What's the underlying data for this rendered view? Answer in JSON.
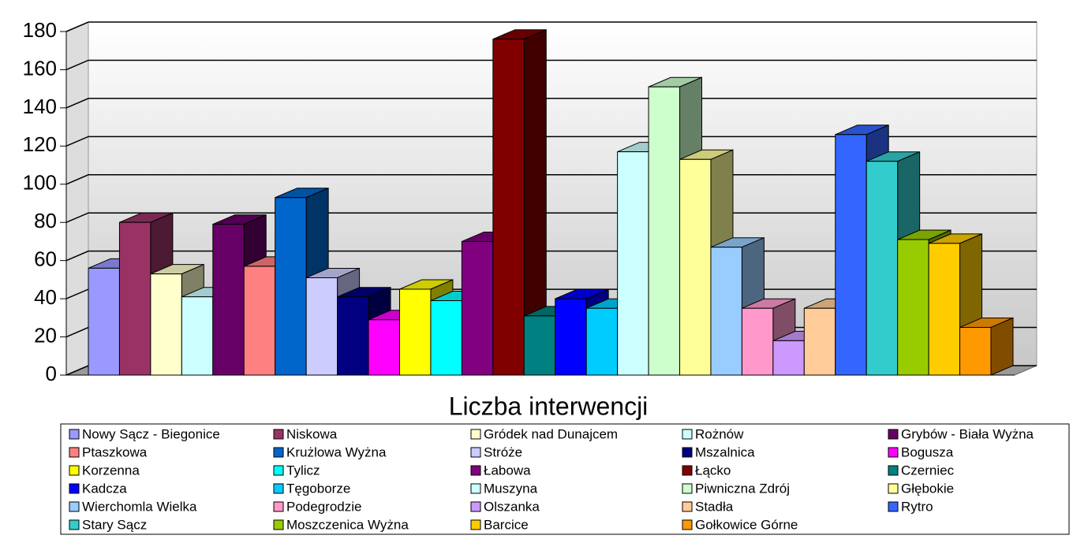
{
  "chart_data": {
    "type": "bar3d",
    "categories": [
      "Liczba interwencji"
    ],
    "ylim": [
      0,
      180
    ],
    "yticks": [
      0,
      20,
      40,
      60,
      80,
      100,
      120,
      140,
      160,
      180
    ],
    "grid": true,
    "series": [
      {
        "name": "Nowy Sącz - Biegonice",
        "color": "#9999ff",
        "values": [
          56
        ]
      },
      {
        "name": "Niskowa",
        "color": "#993366",
        "values": [
          80
        ]
      },
      {
        "name": "Gródek nad Dunajcem",
        "color": "#ffffcc",
        "values": [
          53
        ]
      },
      {
        "name": "Rożnów",
        "color": "#ccffff",
        "values": [
          41
        ]
      },
      {
        "name": "Grybów - Biała Wyżna",
        "color": "#660066",
        "values": [
          79
        ]
      },
      {
        "name": "Ptaszkowa",
        "color": "#ff8080",
        "values": [
          57
        ]
      },
      {
        "name": "Krużlowa Wyżna",
        "color": "#0066cc",
        "values": [
          93
        ]
      },
      {
        "name": "Stróże",
        "color": "#ccccff",
        "values": [
          51
        ]
      },
      {
        "name": "Mszalnica",
        "color": "#000080",
        "values": [
          41
        ]
      },
      {
        "name": "Bogusza",
        "color": "#ff00ff",
        "values": [
          29
        ]
      },
      {
        "name": "Korzenna",
        "color": "#ffff00",
        "values": [
          45
        ]
      },
      {
        "name": "Tylicz",
        "color": "#00ffff",
        "values": [
          39
        ]
      },
      {
        "name": "Łabowa",
        "color": "#800080",
        "values": [
          70
        ]
      },
      {
        "name": "Łącko",
        "color": "#800000",
        "values": [
          176
        ]
      },
      {
        "name": "Czerniec",
        "color": "#008080",
        "values": [
          31
        ]
      },
      {
        "name": "Kadcza",
        "color": "#0000ff",
        "values": [
          40
        ]
      },
      {
        "name": "Tęgoborze",
        "color": "#00ccff",
        "values": [
          35
        ]
      },
      {
        "name": "Muszyna",
        "color": "#ccffff",
        "values": [
          117
        ]
      },
      {
        "name": "Piwniczna Zdrój",
        "color": "#ccffcc",
        "values": [
          151
        ]
      },
      {
        "name": "Głębokie",
        "color": "#ffff99",
        "values": [
          113
        ]
      },
      {
        "name": "Wierchomla Wielka",
        "color": "#99ccff",
        "values": [
          67
        ]
      },
      {
        "name": "Podegrodzie",
        "color": "#ff99cc",
        "values": [
          35
        ]
      },
      {
        "name": "Olszanka",
        "color": "#cc99ff",
        "values": [
          18
        ]
      },
      {
        "name": "Stadła",
        "color": "#ffcc99",
        "values": [
          35
        ]
      },
      {
        "name": "Rytro",
        "color": "#3366ff",
        "values": [
          126
        ]
      },
      {
        "name": "Stary Sącz",
        "color": "#33cccc",
        "values": [
          112
        ]
      },
      {
        "name": "Moszczenica Wyżna",
        "color": "#99cc00",
        "values": [
          71
        ]
      },
      {
        "name": "Barcice",
        "color": "#ffcc00",
        "values": [
          69
        ]
      },
      {
        "name": "Gołkowice Górne",
        "color": "#ff9900",
        "values": [
          25
        ]
      }
    ]
  }
}
